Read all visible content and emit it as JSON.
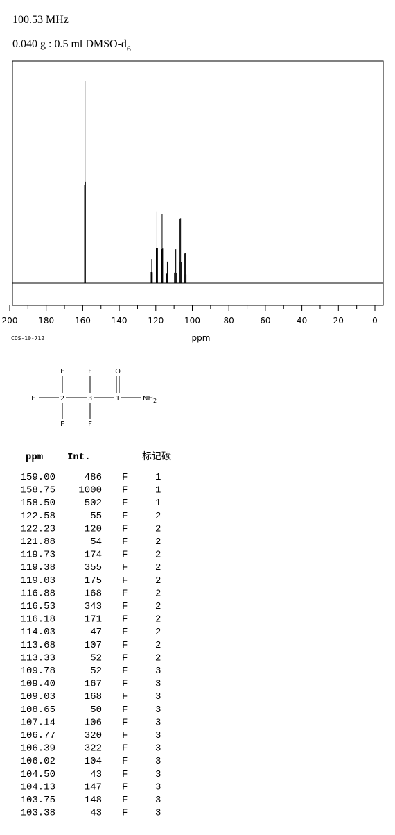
{
  "header": {
    "frequency": "100.53 MHz",
    "sample": "0.040 g : 0.5 ml DMSO-d",
    "sample_subscript": "6"
  },
  "chart_data": {
    "type": "stem",
    "x": [
      159.0,
      158.75,
      158.5,
      122.58,
      122.23,
      121.88,
      119.73,
      119.38,
      119.03,
      116.88,
      116.53,
      116.18,
      114.03,
      113.68,
      113.33,
      109.78,
      109.4,
      109.03,
      108.65,
      107.14,
      106.77,
      106.39,
      106.02,
      104.5,
      104.13,
      103.75,
      103.38
    ],
    "values": [
      486,
      1000,
      502,
      55,
      120,
      54,
      174,
      355,
      175,
      168,
      343,
      171,
      47,
      107,
      52,
      52,
      167,
      168,
      50,
      106,
      320,
      322,
      104,
      43,
      147,
      148,
      43
    ],
    "color": "#000000",
    "xlim": [
      200,
      0
    ],
    "xticks": [
      200,
      180,
      160,
      140,
      120,
      100,
      80,
      60,
      40,
      20,
      0
    ],
    "xminorticks": [
      190,
      170,
      150,
      130,
      110,
      90,
      70,
      50,
      30,
      10
    ],
    "xlabel": "ppm",
    "code": "CDS-10-712"
  },
  "structure": {
    "nodes": [
      {
        "label": "F"
      },
      {
        "label": "2"
      },
      {
        "label": "3"
      },
      {
        "label": "1"
      },
      {
        "label": "NH",
        "subscript": "2"
      },
      {
        "label": "F"
      },
      {
        "label": "F"
      },
      {
        "label": "F"
      },
      {
        "label": "F"
      },
      {
        "label": "O"
      }
    ]
  },
  "table": {
    "columns": [
      "ppm",
      "Int.",
      "标记碳"
    ],
    "rows": [
      [
        "159.00",
        "486",
        "F",
        "1"
      ],
      [
        "158.75",
        "1000",
        "F",
        "1"
      ],
      [
        "158.50",
        "502",
        "F",
        "1"
      ],
      [
        "122.58",
        "55",
        "F",
        "2"
      ],
      [
        "122.23",
        "120",
        "F",
        "2"
      ],
      [
        "121.88",
        "54",
        "F",
        "2"
      ],
      [
        "119.73",
        "174",
        "F",
        "2"
      ],
      [
        "119.38",
        "355",
        "F",
        "2"
      ],
      [
        "119.03",
        "175",
        "F",
        "2"
      ],
      [
        "116.88",
        "168",
        "F",
        "2"
      ],
      [
        "116.53",
        "343",
        "F",
        "2"
      ],
      [
        "116.18",
        "171",
        "F",
        "2"
      ],
      [
        "114.03",
        "47",
        "F",
        "2"
      ],
      [
        "113.68",
        "107",
        "F",
        "2"
      ],
      [
        "113.33",
        "52",
        "F",
        "2"
      ],
      [
        "109.78",
        "52",
        "F",
        "3"
      ],
      [
        "109.40",
        "167",
        "F",
        "3"
      ],
      [
        "109.03",
        "168",
        "F",
        "3"
      ],
      [
        "108.65",
        "50",
        "F",
        "3"
      ],
      [
        "107.14",
        "106",
        "F",
        "3"
      ],
      [
        "106.77",
        "320",
        "F",
        "3"
      ],
      [
        "106.39",
        "322",
        "F",
        "3"
      ],
      [
        "106.02",
        "104",
        "F",
        "3"
      ],
      [
        "104.50",
        "43",
        "F",
        "3"
      ],
      [
        "104.13",
        "147",
        "F",
        "3"
      ],
      [
        "103.75",
        "148",
        "F",
        "3"
      ],
      [
        "103.38",
        "43",
        "F",
        "3"
      ]
    ]
  }
}
